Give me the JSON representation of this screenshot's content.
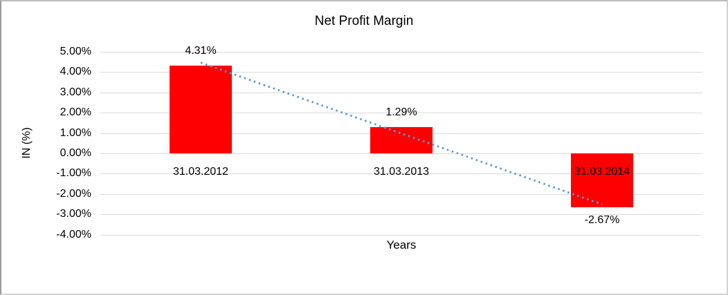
{
  "chart_data": {
    "type": "bar",
    "title": "Net Profit Margin",
    "xlabel": "Years",
    "ylabel": "IN (%)",
    "categories": [
      "31.03.2012",
      "31.03.2013",
      "31.03.2014"
    ],
    "values": [
      4.31,
      1.29,
      -2.67
    ],
    "data_labels": [
      "4.31%",
      "1.29%",
      "-2.67%"
    ],
    "y_ticks": [
      {
        "value": 5,
        "label": "5.00%"
      },
      {
        "value": 4,
        "label": "4.00%"
      },
      {
        "value": 3,
        "label": "3.00%"
      },
      {
        "value": 2,
        "label": "2.00%"
      },
      {
        "value": 1,
        "label": "1.00%"
      },
      {
        "value": 0,
        "label": "0.00%"
      },
      {
        "value": -1,
        "label": "-1.00%"
      },
      {
        "value": -2,
        "label": "-2.00%"
      },
      {
        "value": -3,
        "label": "-3.00%"
      },
      {
        "value": -4,
        "label": "-4.00%"
      }
    ],
    "ylim": [
      -4,
      5
    ],
    "grid": true,
    "legend_position": "none",
    "bar_color": "#ff0000",
    "gridline_color": "#d9d9d9",
    "text_color": "#000000",
    "trendline": {
      "type": "linear",
      "style": "dotted",
      "color": "#5b9bd5",
      "start_value": 4.47,
      "end_value": -2.51
    }
  }
}
